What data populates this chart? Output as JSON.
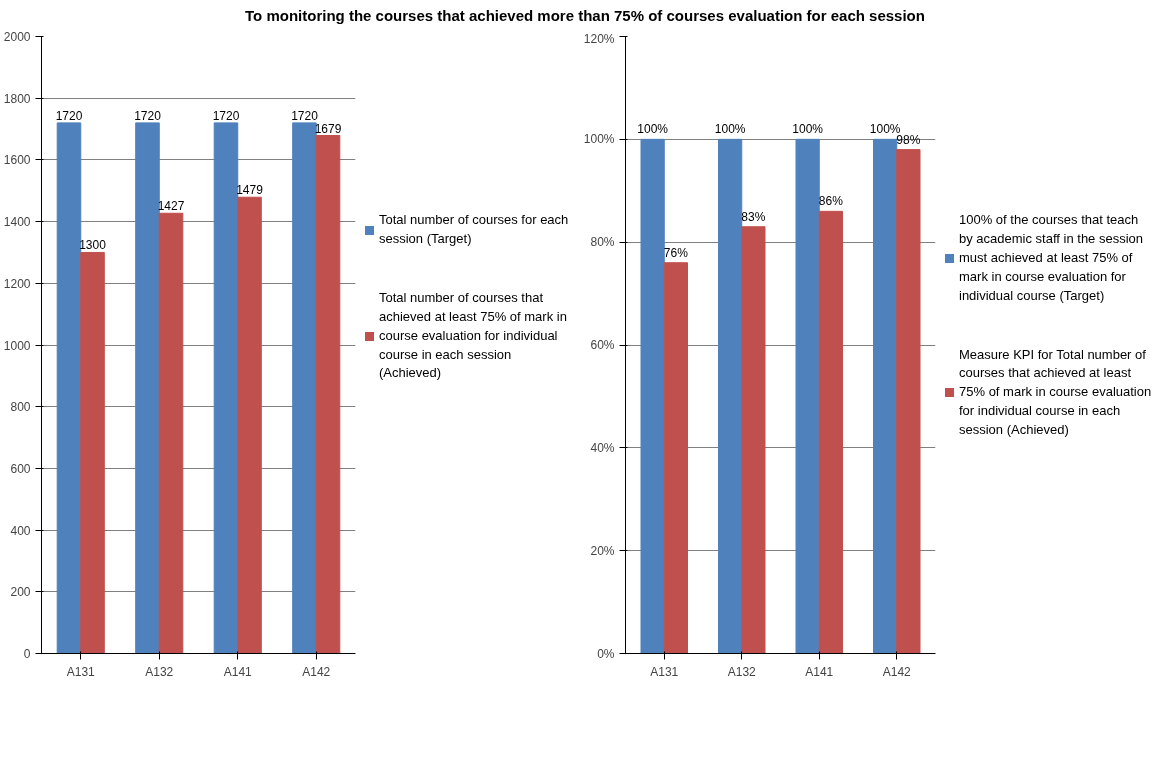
{
  "chart_data": [
    {
      "type": "bar",
      "title": "To monitoring the courses that achieved more than 75% of  courses evaluation  for each session",
      "categories": [
        "A131",
        "A132",
        "A141",
        "A142"
      ],
      "series": [
        {
          "name": "Total number of courses for each session (Target)",
          "color": "#4f81bd",
          "values": [
            1720,
            1720,
            1720,
            1720
          ]
        },
        {
          "name": "Total number of courses that achieved at least  75% of mark in course evaluation for individual course  in each session (Achieved)",
          "color": "#c0504d",
          "values": [
            1300,
            1427,
            1479,
            1679
          ]
        }
      ],
      "ylim": [
        0,
        2000
      ],
      "yticks": [
        0,
        200,
        400,
        600,
        800,
        1000,
        1200,
        1400,
        1600,
        1800,
        2000
      ],
      "grid": "y",
      "legend": "right",
      "data_labels": true
    },
    {
      "type": "bar",
      "categories": [
        "A131",
        "A132",
        "A141",
        "A142"
      ],
      "series": [
        {
          "name": "100% of the courses that teach by academic staff in the session must achieved at least  75% of mark in course evaluation for individual course (Target)",
          "color": "#4f81bd",
          "values": [
            100,
            100,
            100,
            100
          ],
          "value_labels": [
            "100%",
            "100%",
            "100%",
            "100%"
          ]
        },
        {
          "name": "Measure KPI for Total number of courses that achieved at least  75% of mark in course evaluation for individual course in each session (Achieved)",
          "color": "#c0504d",
          "values": [
            76,
            83,
            86,
            98
          ],
          "value_labels": [
            "76%",
            "83%",
            "86%",
            "98%"
          ]
        }
      ],
      "ylim": [
        0,
        120
      ],
      "yticks": [
        {
          "value": 0,
          "label": "0%"
        },
        {
          "value": 20,
          "label": "20%"
        },
        {
          "value": 40,
          "label": "40%"
        },
        {
          "value": 60,
          "label": "60%"
        },
        {
          "value": 80,
          "label": "80%"
        },
        {
          "value": 100,
          "label": "100%"
        },
        {
          "value": 120,
          "label": "120%"
        }
      ],
      "grid": "y",
      "legend": "right"
    }
  ]
}
